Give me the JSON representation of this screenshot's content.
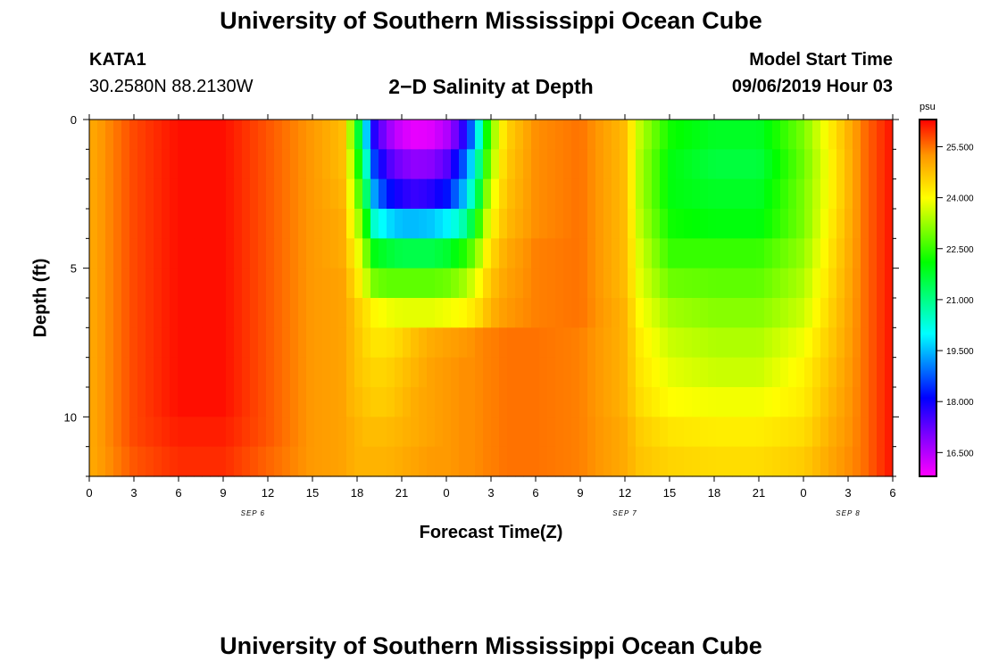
{
  "page": {
    "title": "University of Southern Mississippi Ocean Cube",
    "footer_title": "University of Southern Mississippi Ocean Cube",
    "station": "KATA1",
    "location": "30.2580N 88.2130W",
    "model_start_label": "Model Start Time",
    "model_start_value": "09/06/2019 Hour 03"
  },
  "chart_data": {
    "type": "heatmap",
    "title": "2−D Salinity at Depth",
    "xlabel": "Forecast Time(Z)",
    "ylabel": "Depth (ft)",
    "x_ticks": [
      "0",
      "3",
      "6",
      "9",
      "12",
      "15",
      "18",
      "21",
      "0",
      "3",
      "6",
      "9",
      "12",
      "15",
      "18",
      "21",
      "0",
      "3",
      "6"
    ],
    "x_range_hours": [
      0,
      54
    ],
    "date_labels": [
      {
        "text": "SEP 6",
        "hour": 11
      },
      {
        "text": "SEP 7",
        "hour": 36
      },
      {
        "text": "SEP 8",
        "hour": 51
      }
    ],
    "y_ticks": [
      "0",
      "5",
      "10"
    ],
    "y_range_ft": [
      0,
      12
    ],
    "colorbar": {
      "unit": "psu",
      "min": 15.8,
      "max": 26.3,
      "ticks": [
        "25.500",
        "24.000",
        "22.500",
        "21.000",
        "19.500",
        "18.000",
        "16.500"
      ]
    },
    "depth_levels_ft": [
      0.5,
      1.5,
      2.5,
      3.5,
      4.5,
      5.5,
      6.5,
      7.5,
      8.5,
      9.5,
      10.5,
      11.5
    ],
    "series_times_hours": [
      0,
      3,
      6,
      9,
      12,
      15,
      17,
      17.5,
      18,
      18.5,
      19,
      20,
      21,
      22,
      23,
      24,
      25,
      26,
      26.5,
      27,
      28,
      30,
      33,
      36,
      37,
      39,
      42,
      45,
      48,
      50,
      52,
      54
    ],
    "salinity_psu": [
      [
        25.0,
        25.8,
        26.2,
        26.2,
        25.7,
        25.2,
        24.8,
        23.5,
        22.0,
        20.2,
        18.0,
        16.8,
        16.2,
        16.0,
        16.1,
        16.5,
        17.5,
        19.5,
        21.5,
        23.0,
        24.5,
        25.3,
        25.5,
        24.8,
        23.5,
        22.2,
        21.8,
        21.8,
        23.0,
        24.3,
        25.5,
        26.2
      ],
      [
        25.0,
        25.8,
        26.2,
        26.2,
        25.7,
        25.2,
        24.8,
        23.8,
        22.5,
        21.0,
        18.8,
        17.5,
        17.0,
        16.8,
        16.9,
        17.3,
        18.5,
        20.3,
        22.0,
        23.3,
        24.6,
        25.3,
        25.5,
        24.8,
        23.4,
        22.0,
        21.6,
        21.6,
        22.9,
        24.2,
        25.5,
        26.2
      ],
      [
        25.0,
        25.8,
        26.2,
        26.2,
        25.7,
        25.2,
        24.9,
        24.0,
        23.0,
        21.8,
        19.5,
        18.3,
        17.8,
        17.6,
        17.8,
        18.2,
        19.2,
        21.0,
        22.6,
        23.7,
        24.7,
        25.3,
        25.5,
        24.8,
        23.4,
        22.0,
        21.8,
        21.8,
        23.0,
        24.2,
        25.5,
        26.2
      ],
      [
        25.0,
        25.8,
        26.2,
        26.2,
        25.7,
        25.2,
        25.0,
        24.2,
        23.5,
        22.6,
        20.5,
        19.8,
        19.5,
        19.5,
        19.6,
        19.9,
        20.5,
        22.0,
        23.3,
        24.0,
        24.8,
        25.3,
        25.5,
        24.8,
        23.5,
        22.2,
        22.0,
        22.0,
        23.0,
        24.3,
        25.5,
        26.2
      ],
      [
        25.0,
        25.8,
        26.2,
        26.2,
        25.7,
        25.2,
        25.0,
        24.5,
        24.0,
        23.3,
        22.0,
        21.7,
        21.5,
        21.5,
        21.5,
        21.7,
        22.2,
        23.0,
        23.9,
        24.4,
        25.0,
        25.4,
        25.5,
        24.8,
        23.7,
        22.5,
        22.5,
        22.5,
        23.2,
        24.4,
        25.5,
        26.2
      ],
      [
        25.0,
        25.8,
        26.2,
        26.2,
        25.7,
        25.2,
        25.1,
        24.7,
        24.3,
        23.8,
        23.0,
        22.8,
        22.8,
        22.8,
        22.8,
        22.9,
        23.2,
        23.8,
        24.3,
        24.7,
        25.1,
        25.4,
        25.5,
        24.8,
        23.8,
        22.9,
        22.8,
        22.8,
        23.4,
        24.5,
        25.5,
        26.2
      ],
      [
        25.0,
        25.8,
        26.2,
        26.2,
        25.7,
        25.2,
        25.1,
        24.9,
        24.6,
        24.4,
        24.1,
        23.9,
        23.8,
        23.8,
        23.8,
        23.9,
        24.0,
        24.3,
        24.6,
        24.9,
        25.2,
        25.4,
        25.5,
        24.9,
        24.0,
        23.3,
        23.1,
        23.1,
        23.6,
        24.6,
        25.5,
        26.2
      ],
      [
        25.0,
        25.8,
        26.2,
        26.2,
        25.7,
        25.2,
        25.1,
        24.9,
        24.7,
        24.5,
        24.3,
        24.3,
        24.5,
        24.8,
        25.0,
        25.1,
        25.2,
        25.3,
        25.4,
        25.4,
        25.5,
        25.5,
        25.4,
        24.9,
        24.2,
        23.6,
        23.4,
        23.4,
        23.9,
        24.7,
        25.5,
        26.2
      ],
      [
        25.0,
        25.8,
        26.2,
        26.2,
        25.7,
        25.2,
        25.1,
        24.9,
        24.7,
        24.6,
        24.5,
        24.5,
        24.7,
        24.9,
        25.1,
        25.2,
        25.3,
        25.3,
        25.4,
        25.4,
        25.5,
        25.5,
        25.4,
        24.9,
        24.3,
        23.8,
        23.6,
        23.6,
        24.1,
        24.8,
        25.5,
        26.2
      ],
      [
        25.0,
        25.8,
        26.2,
        26.2,
        25.7,
        25.2,
        25.1,
        24.9,
        24.8,
        24.7,
        24.6,
        24.6,
        24.8,
        25.0,
        25.1,
        25.2,
        25.3,
        25.3,
        25.4,
        25.4,
        25.5,
        25.5,
        25.4,
        24.9,
        24.4,
        24.0,
        23.9,
        23.9,
        24.2,
        24.9,
        25.5,
        26.2
      ],
      [
        25.0,
        25.8,
        26.1,
        26.1,
        25.7,
        25.2,
        25.1,
        25.0,
        24.9,
        24.8,
        24.8,
        24.8,
        24.9,
        25.0,
        25.1,
        25.2,
        25.3,
        25.3,
        25.4,
        25.4,
        25.5,
        25.5,
        25.4,
        25.0,
        24.6,
        24.3,
        24.2,
        24.2,
        24.4,
        25.0,
        25.5,
        26.2
      ],
      [
        25.0,
        25.7,
        26.0,
        26.0,
        25.6,
        25.2,
        25.1,
        25.0,
        24.9,
        24.9,
        24.9,
        24.9,
        25.0,
        25.1,
        25.2,
        25.2,
        25.3,
        25.3,
        25.4,
        25.4,
        25.5,
        25.5,
        25.4,
        25.0,
        24.7,
        24.5,
        24.4,
        24.4,
        24.6,
        25.1,
        25.5,
        26.2
      ]
    ]
  }
}
